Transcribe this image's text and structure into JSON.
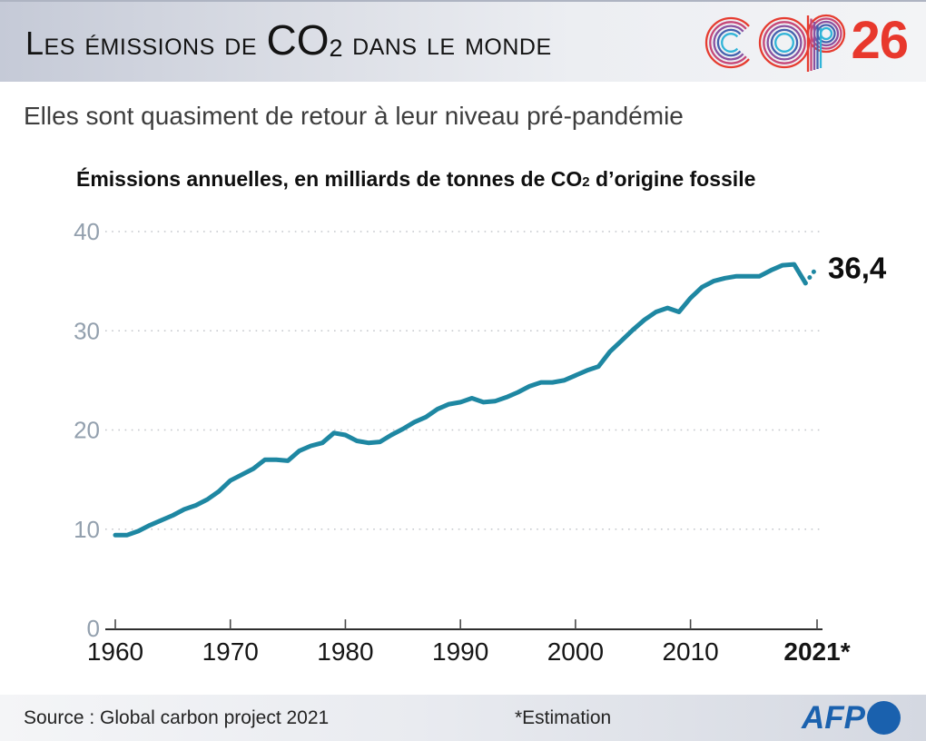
{
  "header": {
    "title": {
      "pre_sub": "Les émissions de ",
      "co": "CO",
      "sub": "2",
      "post_sub": " dans le monde"
    },
    "cop26": {
      "cop_text": "COP",
      "number": "26",
      "ring_colors": [
        "#e63c30",
        "#c64878",
        "#8a52a0",
        "#4562ae",
        "#30b4d8"
      ],
      "number_color": "#e8382c"
    }
  },
  "subtitle": "Elles sont quasiment de retour à leur niveau pré-pandémie",
  "chart": {
    "title": {
      "pre_sub": "Émissions annuelles, en milliards de tonnes de CO",
      "sub": "2",
      "post_sub": " d’origine fossile"
    }
  },
  "chart_data": {
    "type": "line",
    "title": "Émissions annuelles, en milliards de tonnes de CO2 d'origine fossile",
    "xlabel": "",
    "ylabel": "milliards de tonnes de CO2",
    "xlim": [
      1960,
      2021
    ],
    "ylim": [
      0,
      40
    ],
    "grid": "dotted-horizontal",
    "line_color": "#1e87a2",
    "y_ticks": [
      0,
      10,
      20,
      30,
      40
    ],
    "x_ticks": [
      {
        "x": 1960,
        "label": "1960",
        "bold": false
      },
      {
        "x": 1970,
        "label": "1970",
        "bold": false
      },
      {
        "x": 1980,
        "label": "1980",
        "bold": false
      },
      {
        "x": 1990,
        "label": "1990",
        "bold": false
      },
      {
        "x": 2000,
        "label": "2000",
        "bold": false
      },
      {
        "x": 2010,
        "label": "2010",
        "bold": false
      },
      {
        "x": 2021,
        "label": "2021*",
        "bold": true
      }
    ],
    "x": [
      1960,
      1961,
      1962,
      1963,
      1964,
      1965,
      1966,
      1967,
      1968,
      1969,
      1970,
      1971,
      1972,
      1973,
      1974,
      1975,
      1976,
      1977,
      1978,
      1979,
      1980,
      1981,
      1982,
      1983,
      1984,
      1985,
      1986,
      1987,
      1988,
      1989,
      1990,
      1991,
      1992,
      1993,
      1994,
      1995,
      1996,
      1997,
      1998,
      1999,
      2000,
      2001,
      2002,
      2003,
      2004,
      2005,
      2006,
      2007,
      2008,
      2009,
      2010,
      2011,
      2012,
      2013,
      2014,
      2015,
      2016,
      2017,
      2018,
      2019,
      2020,
      2021
    ],
    "values": [
      9.4,
      9.4,
      9.8,
      10.4,
      10.9,
      11.4,
      12.0,
      12.4,
      13.0,
      13.8,
      14.9,
      15.5,
      16.1,
      17.0,
      17.0,
      16.9,
      17.9,
      18.4,
      18.7,
      19.7,
      19.5,
      18.9,
      18.7,
      18.8,
      19.5,
      20.1,
      20.8,
      21.3,
      22.1,
      22.6,
      22.8,
      23.2,
      22.8,
      22.9,
      23.3,
      23.8,
      24.4,
      24.8,
      24.8,
      25.0,
      25.5,
      26.0,
      26.4,
      27.9,
      29.0,
      30.1,
      31.1,
      31.9,
      32.3,
      31.9,
      33.3,
      34.4,
      35.0,
      35.3,
      35.5,
      35.5,
      35.5,
      36.1,
      36.6,
      36.7,
      34.8,
      36.4
    ],
    "last_segment_dotted": true,
    "annotation": {
      "text": "36,4",
      "x": 2021,
      "y": 36.4
    }
  },
  "footer": {
    "source": "Source : Global carbon project 2021",
    "estimation_note": "*Estimation",
    "afp_label": "AFP",
    "afp_color": "#1a61ae"
  }
}
